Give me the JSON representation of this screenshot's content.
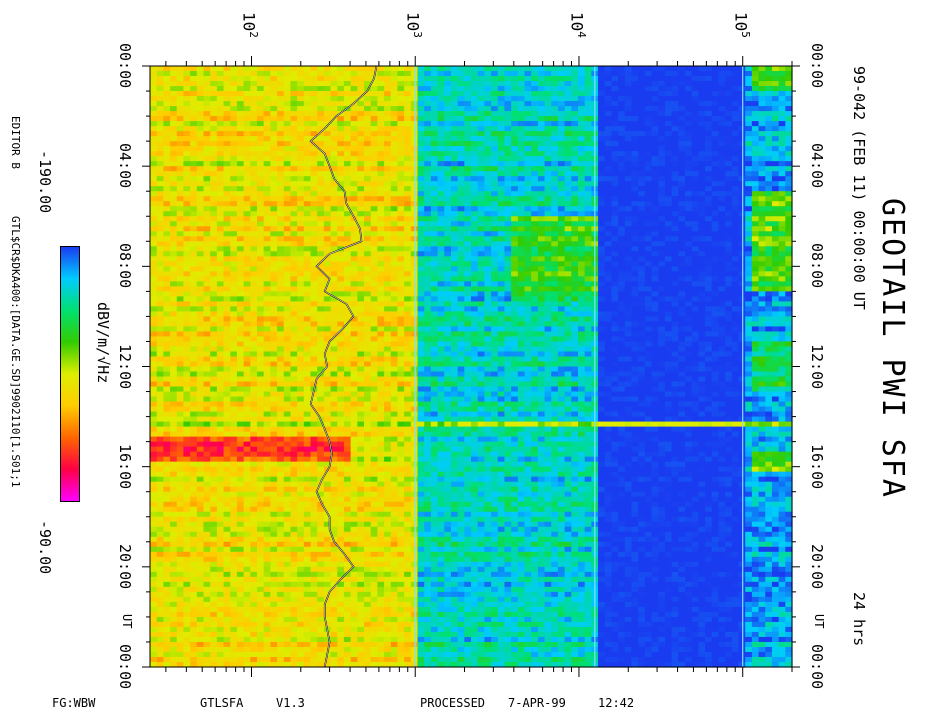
{
  "title": "GEOTAIL PWI SFA",
  "date_line": "99-042 (FEB 11) 00:00:00 UT",
  "duration": "24 hrs",
  "editor": "EDITOR B",
  "file_path": "GTL$CR$DKA400:[DATA.GE.SD]9902110[1.S01;1",
  "colorbar": {
    "label": "dBV/m/√Hz",
    "min_label": "-190.00",
    "max_label": "-90.00",
    "min": -190,
    "max": -90,
    "colors": [
      "#1a3cf0",
      "#00ccff",
      "#00e070",
      "#33cc00",
      "#ddee00",
      "#ffcc00",
      "#ff6600",
      "#ff0044",
      "#ff00ff"
    ]
  },
  "footer": {
    "left": "FG:WBW",
    "program": "GTLSFA",
    "version": "V1.3",
    "processed": "PROCESSED",
    "processed_date": "7-APR-99",
    "processed_time": "12:42"
  },
  "chart_data": {
    "type": "heatmap",
    "freq_axis": {
      "scale": "log",
      "range_hz": [
        24,
        200000
      ],
      "tick_labels": [
        {
          "base": "10",
          "exp": "2",
          "value": 100
        },
        {
          "base": "10",
          "exp": "3",
          "value": 1000
        },
        {
          "base": "10",
          "exp": "4",
          "value": 10000
        },
        {
          "base": "10",
          "exp": "5",
          "value": 100000
        }
      ],
      "band_edges_hz": [
        1000,
        12500,
        100000
      ]
    },
    "time_axis": {
      "range_hours": [
        0,
        24
      ],
      "labels_left": [
        "00:00",
        "04:00",
        "08:00",
        "12:00",
        "16:00",
        "20:00",
        "00:00"
      ],
      "labels_right": [
        "00:00",
        "04:00",
        "08:00",
        "12:00",
        "16:00",
        "20:00",
        "00:00"
      ],
      "ut_label": "UT",
      "label_hours": [
        0,
        4,
        8,
        12,
        16,
        20,
        24
      ]
    },
    "overlay_line": {
      "hours": [
        0,
        0.5,
        1,
        1.5,
        2,
        2.5,
        3,
        3.5,
        4,
        4.5,
        5,
        5.5,
        6,
        6.5,
        7,
        7.5,
        8,
        8.5,
        9,
        9.5,
        10,
        10.5,
        11,
        11.5,
        12,
        12.5,
        13,
        13.5,
        14,
        14.5,
        15,
        15.5,
        16,
        16.5,
        17,
        17.5,
        18,
        18.5,
        19,
        19.5,
        20,
        20.5,
        21,
        21.5,
        22,
        22.5,
        23,
        23.5,
        24
      ],
      "freq_hz": [
        580,
        560,
        510,
        420,
        330,
        280,
        230,
        280,
        300,
        320,
        370,
        380,
        420,
        460,
        470,
        300,
        250,
        300,
        280,
        380,
        420,
        360,
        300,
        280,
        290,
        250,
        240,
        230,
        260,
        280,
        300,
        310,
        300,
        270,
        250,
        270,
        300,
        300,
        320,
        370,
        420,
        350,
        300,
        280,
        280,
        290,
        300,
        290,
        280
      ]
    },
    "enhancements": [
      {
        "h0": 0.1,
        "h1": 1.0,
        "f0": 110000,
        "f1": 200000,
        "level": -150
      },
      {
        "h0": 5.0,
        "h1": 9.0,
        "f0": 110000,
        "f1": 210000,
        "level": -152
      },
      {
        "h0": 6.0,
        "h1": 9.5,
        "f0": 4000,
        "f1": 12500,
        "level": -155
      },
      {
        "h0": 11.0,
        "h1": 13.0,
        "f0": 110000,
        "f1": 200000,
        "level": -160
      },
      {
        "h0": 14.2,
        "h1": 14.4,
        "f0": 24,
        "f1": 200000,
        "level": -140
      },
      {
        "h0": 14.8,
        "h1": 15.8,
        "f0": 24,
        "f1": 400,
        "level": -110
      },
      {
        "h0": 14.8,
        "h1": 15.8,
        "f0": 400,
        "f1": 1000,
        "level": -140
      },
      {
        "h0": 15.5,
        "h1": 16.2,
        "f0": 110000,
        "f1": 200000,
        "level": -150
      }
    ],
    "voids": [
      {
        "h0": 0.0,
        "h1": 24.0,
        "f0": 12500,
        "f1": 100000,
        "level": -190
      },
      {
        "h0": 0.0,
        "h1": 24.0,
        "f0": 100000,
        "f1": 200000,
        "level": -188
      }
    ],
    "base_levels": [
      {
        "f0": 24,
        "f1": 1000,
        "level": -135
      },
      {
        "f0": 1000,
        "f1": 12500,
        "level": -172
      },
      {
        "f0": 12500,
        "f1": 100000,
        "level": -190
      },
      {
        "f0": 100000,
        "f1": 200000,
        "level": -180
      }
    ]
  }
}
